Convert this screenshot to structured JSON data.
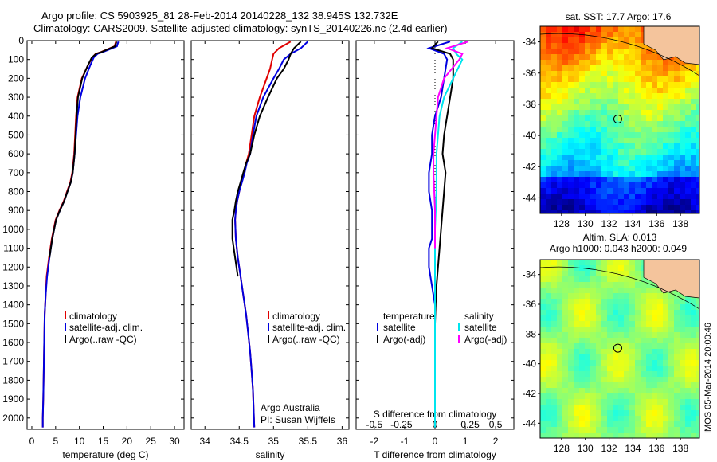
{
  "header": {
    "line1": "Argo profile: CS 5903925_81 28-Feb-2014 20140228_132 38.945S 132.732E",
    "line2": "Climatology: CARS2009. Satellite-adjusted climatology: synTS_20140226.nc (2.4d earlier)"
  },
  "side_label": "IMOS 05-Mar-2014 20:00:46",
  "chart_data": [
    {
      "type": "line",
      "name": "temperature-profile",
      "xlabel": "temperature (deg C)",
      "ylabel": "",
      "xlim": [
        -1,
        32
      ],
      "ylim": [
        2060,
        0
      ],
      "xticks": [
        0,
        5,
        10,
        15,
        20,
        25,
        30
      ],
      "yticks": [
        0,
        100,
        200,
        300,
        400,
        500,
        600,
        700,
        800,
        900,
        1000,
        1100,
        1200,
        1300,
        1400,
        1500,
        1600,
        1700,
        1800,
        1900,
        2000
      ],
      "grid": false,
      "legend": {
        "position": "lower-center",
        "entries": [
          "climatology",
          "satellite-adj. clim.",
          "Argo(..raw -QC)"
        ]
      },
      "series": [
        {
          "name": "climatology",
          "color": "#e00000",
          "x": [
            17.7,
            17.4,
            14.6,
            13.4,
            12.7,
            11.8,
            10.5,
            9.6,
            9.3,
            9.1,
            8.9,
            8.5,
            8.1,
            7.4,
            6.7,
            5.8,
            5.0,
            4.2,
            3.6,
            3.1,
            2.9,
            2.7,
            2.6,
            2.5,
            2.4,
            2.3,
            2.3
          ],
          "y": [
            5,
            30,
            60,
            70,
            90,
            130,
            200,
            300,
            400,
            500,
            600,
            700,
            750,
            800,
            850,
            900,
            950,
            1050,
            1150,
            1250,
            1350,
            1450,
            1600,
            1750,
            1900,
            2000,
            2050
          ]
        },
        {
          "name": "satellite-adj. clim.",
          "color": "#0000e0",
          "x": [
            18.2,
            17.9,
            15.0,
            13.8,
            13.0,
            12.3,
            11.2,
            10.2,
            9.6,
            9.3,
            9.0,
            8.6,
            8.2,
            7.5,
            6.8,
            5.9,
            5.1,
            4.3,
            3.7,
            3.2,
            2.9,
            2.7,
            2.6,
            2.5,
            2.4,
            2.3,
            2.3
          ],
          "y": [
            5,
            30,
            60,
            70,
            90,
            130,
            200,
            300,
            400,
            500,
            600,
            700,
            750,
            800,
            850,
            900,
            950,
            1050,
            1150,
            1250,
            1350,
            1450,
            1600,
            1750,
            1900,
            2000,
            2050
          ]
        },
        {
          "name": "Argo(..raw -QC)",
          "color": "#000000",
          "x": [
            17.8,
            17.5,
            14.7,
            13.5,
            12.6,
            11.8,
            10.6,
            9.7,
            9.4,
            9.2,
            9.0,
            8.6,
            8.2,
            7.5,
            6.8,
            5.9,
            5.1,
            4.3,
            3.7
          ],
          "y": [
            5,
            30,
            60,
            70,
            90,
            130,
            200,
            300,
            400,
            500,
            600,
            700,
            750,
            800,
            850,
            900,
            950,
            1050,
            1150
          ]
        }
      ]
    },
    {
      "type": "line",
      "name": "salinity-profile",
      "xlabel": "salinity",
      "ylabel": "",
      "xlim": [
        33.8,
        36.1
      ],
      "ylim": [
        2060,
        0
      ],
      "xticks": [
        34,
        34.5,
        35,
        35.5,
        36
      ],
      "grid": false,
      "legend": {
        "position": "lower-center",
        "entries": [
          "climatology",
          "satellite-adj. clim.",
          "Argo(..raw -QC)"
        ]
      },
      "annotation": [
        "Argo Australia",
        "PI: Susan Wijffels"
      ],
      "series": [
        {
          "name": "climatology",
          "color": "#e00000",
          "x": [
            35.25,
            35.08,
            35.0,
            34.98,
            34.95,
            34.9,
            34.8,
            34.72,
            34.68,
            34.64,
            34.6,
            34.57,
            34.53,
            34.5,
            34.47,
            34.45,
            34.44,
            34.45,
            34.48,
            34.52,
            34.56,
            34.6,
            34.63,
            34.66,
            34.68,
            34.7,
            34.71,
            34.72
          ],
          "y": [
            5,
            40,
            70,
            100,
            150,
            200,
            300,
            400,
            500,
            600,
            650,
            700,
            750,
            800,
            850,
            900,
            950,
            1050,
            1150,
            1250,
            1350,
            1450,
            1550,
            1650,
            1750,
            1850,
            1950,
            2050
          ]
        },
        {
          "name": "satellite-adj. clim.",
          "color": "#0000e0",
          "x": [
            35.5,
            35.4,
            35.25,
            35.15,
            35.08,
            35.0,
            34.85,
            34.75,
            34.7,
            34.66,
            34.61,
            34.58,
            34.54,
            34.5,
            34.47,
            34.45,
            34.44,
            34.45,
            34.48,
            34.52,
            34.56,
            34.6,
            34.63,
            34.66,
            34.68,
            34.7,
            34.71,
            34.72
          ],
          "y": [
            5,
            40,
            70,
            100,
            150,
            200,
            300,
            400,
            500,
            600,
            650,
            700,
            750,
            800,
            850,
            900,
            950,
            1050,
            1150,
            1250,
            1350,
            1450,
            1550,
            1650,
            1750,
            1850,
            1950,
            2050
          ]
        },
        {
          "name": "Argo(..raw -QC)",
          "color": "#000000",
          "x": [
            35.4,
            35.3,
            35.25,
            35.22,
            35.15,
            35.05,
            34.92,
            34.8,
            34.72,
            34.66,
            34.6,
            34.56,
            34.52,
            34.48,
            34.45,
            34.43,
            34.4,
            34.4,
            34.44,
            34.48
          ],
          "y": [
            5,
            40,
            70,
            100,
            150,
            200,
            300,
            400,
            500,
            600,
            650,
            700,
            750,
            800,
            850,
            900,
            950,
            1050,
            1150,
            1250
          ]
        }
      ]
    },
    {
      "type": "line",
      "name": "difference-profile",
      "xlabel": "T difference from climatology",
      "xlabel_top": "S difference from climatology",
      "xlim": [
        -2.6,
        2.6
      ],
      "ylim": [
        2060,
        0
      ],
      "xticks": [
        -2,
        -1,
        0,
        1,
        2
      ],
      "xticks_top": [
        "-0.5",
        "-0.25",
        "0",
        "0.25",
        "0.5"
      ],
      "grid": false,
      "legend": {
        "position": "lower-center",
        "groups": [
          {
            "title": "temperature",
            "entries": [
              "satellite",
              "Argo(-adj)"
            ]
          },
          {
            "title": "salinity",
            "entries": [
              "satellite",
              "Argo(-adj)"
            ]
          }
        ]
      },
      "series": [
        {
          "name": "temperature satellite",
          "color": "#0000e0",
          "x": [
            0.5,
            -0.2,
            0.3,
            0.4,
            0.3,
            0.2,
            0.0,
            -0.1,
            -0.1,
            -0.2,
            -0.2,
            -0.1,
            -0.1,
            -0.1,
            -0.1,
            -0.2,
            -0.2,
            -0.1,
            0.0,
            0.0,
            0.0,
            0.0,
            0.0,
            0.0
          ],
          "y": [
            5,
            40,
            70,
            100,
            200,
            300,
            400,
            500,
            600,
            700,
            800,
            900,
            950,
            1000,
            1050,
            1100,
            1200,
            1300,
            1400,
            1500,
            1600,
            1800,
            1950,
            2050
          ]
        },
        {
          "name": "temperature Argo(-adj)",
          "color": "#000000",
          "x": [
            0.1,
            -0.1,
            0.5,
            0.6,
            0.6,
            0.5,
            0.4,
            0.3,
            0.25,
            0.35,
            0.3,
            0.25,
            0.2,
            0.15,
            0.1,
            0.05,
            0.02,
            0.0
          ],
          "y": [
            5,
            40,
            70,
            100,
            200,
            300,
            400,
            500,
            600,
            700,
            800,
            900,
            1000,
            1100,
            1200,
            1300,
            1400,
            1500
          ]
        },
        {
          "name": "salinity satellite",
          "color": "#00e5ee",
          "x": [
            0.9,
            0.6,
            0.7,
            0.9,
            0.6,
            0.3,
            0.15,
            0.1,
            0.05,
            0.05,
            0.0,
            0.0,
            0.0,
            0.0,
            0.0,
            0.0
          ],
          "y": [
            5,
            40,
            70,
            100,
            200,
            300,
            400,
            500,
            600,
            800,
            1000,
            1200,
            1400,
            1600,
            1800,
            2050
          ]
        },
        {
          "name": "salinity Argo(-adj)",
          "color": "#ff00ff",
          "x": [
            1.1,
            0.4,
            0.9,
            0.8,
            0.3,
            0.1,
            0.05,
            0.0,
            -0.05,
            -0.05,
            0.0,
            0.0
          ],
          "y": [
            5,
            40,
            70,
            100,
            200,
            300,
            400,
            500,
            600,
            700,
            900,
            1100
          ]
        }
      ]
    },
    {
      "type": "heatmap",
      "name": "sst-map",
      "title": "sat. SST: 17.7  Argo: 17.6",
      "xlim": [
        126.2,
        139.6
      ],
      "ylim": [
        -45,
        -33
      ],
      "xticks": [
        128,
        130,
        132,
        134,
        136,
        138
      ],
      "yticks": [
        -34,
        -36,
        -38,
        -40,
        -42,
        -44
      ],
      "marker": {
        "lon": 132.73,
        "lat": -38.95
      }
    },
    {
      "type": "heatmap",
      "name": "sla-map",
      "title": [
        "Altim. SLA: 0.013",
        "Argo h1000: 0.043 h2000: 0.049"
      ],
      "xlim": [
        126.2,
        139.6
      ],
      "ylim": [
        -45,
        -33
      ],
      "xticks": [
        128,
        130,
        132,
        134,
        136,
        138
      ],
      "yticks": [
        -34,
        -36,
        -38,
        -40,
        -42,
        -44
      ],
      "marker": {
        "lon": 132.73,
        "lat": -38.95
      }
    }
  ]
}
